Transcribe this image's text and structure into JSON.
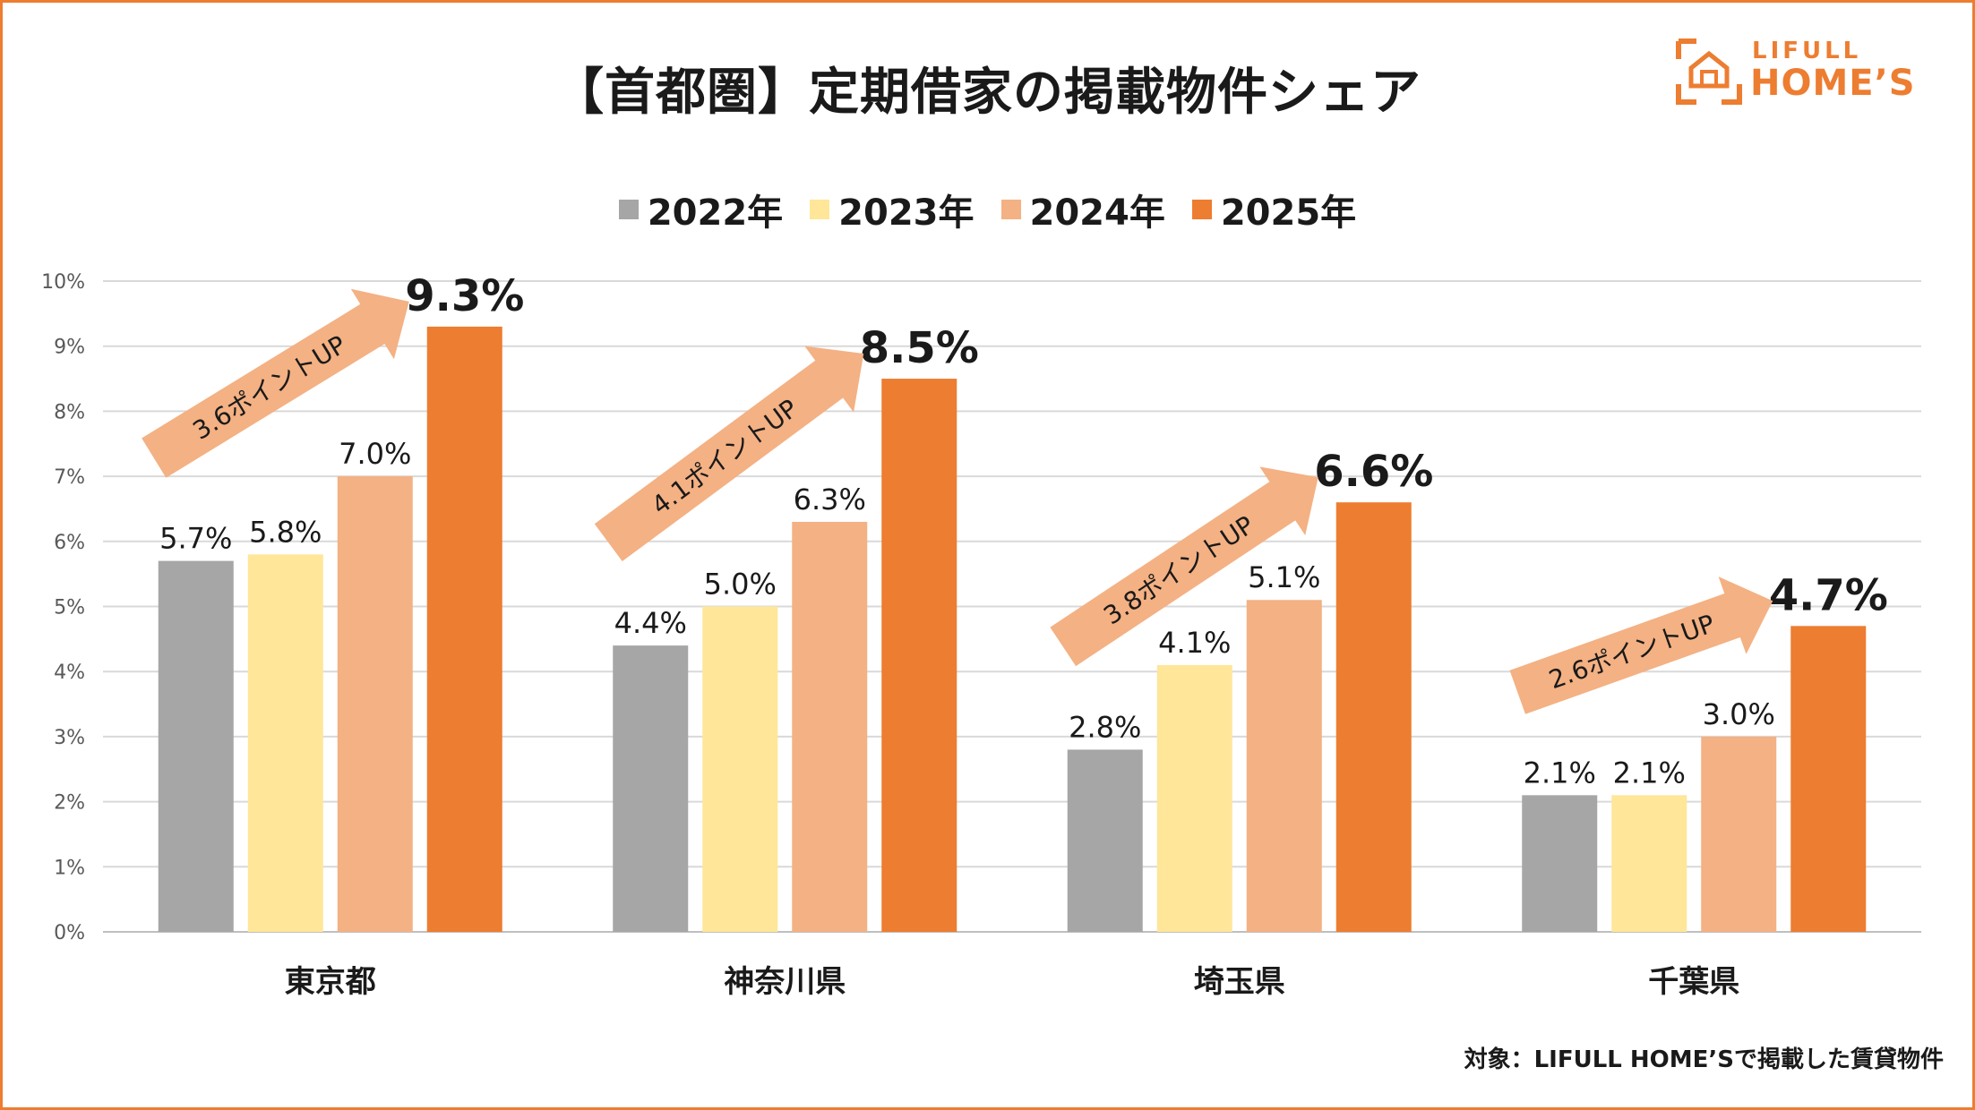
{
  "title": "【首都圏】定期借家の掲載物件シェア",
  "logo": {
    "top": "LIFULL",
    "bottom": "HOME’S"
  },
  "footnote": "対象：LIFULL HOME’Sで掲載した賃貸物件",
  "colors": {
    "frame": "#ED7D31",
    "series": [
      "#A6A6A6",
      "#FFE699",
      "#F4B183",
      "#ED7D31"
    ],
    "arrow": "#F4B183",
    "grid": "#D9D9D9"
  },
  "chart_data": {
    "type": "bar",
    "categories": [
      "東京都",
      "神奈川県",
      "埼玉県",
      "千葉県"
    ],
    "series": [
      {
        "name": "2022年",
        "values": [
          5.7,
          4.4,
          2.8,
          2.1
        ],
        "labels": [
          "5.7%",
          "4.4%",
          "2.8%",
          "2.1%"
        ]
      },
      {
        "name": "2023年",
        "values": [
          5.8,
          5.0,
          4.1,
          2.1
        ],
        "labels": [
          "5.8%",
          "5.0%",
          "4.1%",
          "2.1%"
        ]
      },
      {
        "name": "2024年",
        "values": [
          7.0,
          6.3,
          5.1,
          3.0
        ],
        "labels": [
          "7.0%",
          "6.3%",
          "5.1%",
          "3.0%"
        ]
      },
      {
        "name": "2025年",
        "values": [
          9.3,
          8.5,
          6.6,
          4.7
        ],
        "labels": [
          "9.3%",
          "8.5%",
          "6.6%",
          "4.7%"
        ]
      }
    ],
    "yticks": [
      "0%",
      "1%",
      "2%",
      "3%",
      "4%",
      "5%",
      "6%",
      "7%",
      "8%",
      "9%",
      "10%"
    ],
    "ylim": [
      0,
      10
    ],
    "grid": true,
    "legend": "top",
    "annotations": [
      "3.6ポイントUP",
      "4.1ポイントUP",
      "3.8ポイントUP",
      "2.6ポイントUP"
    ]
  }
}
